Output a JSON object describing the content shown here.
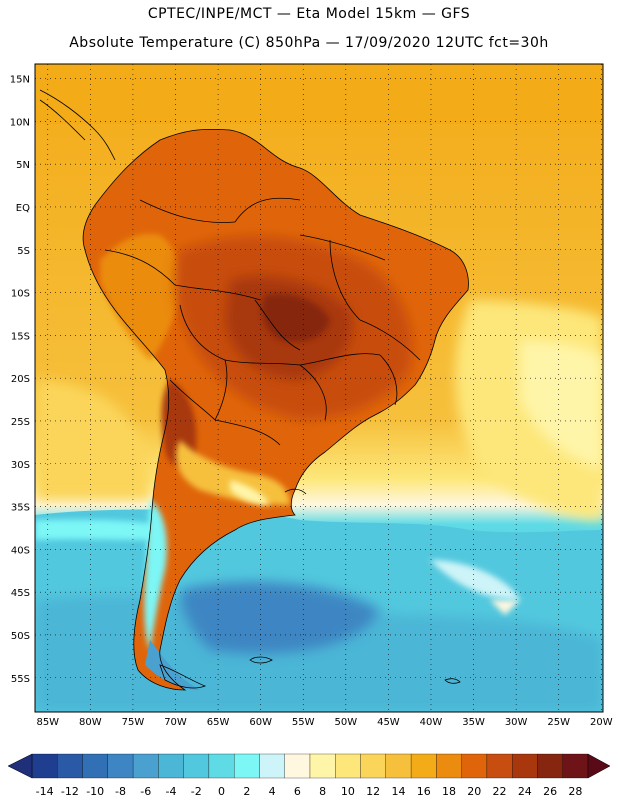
{
  "titles": {
    "line1": "CPTEC/INPE/MCT —  Eta Model 15km — GFS",
    "line2": "Absolute Temperature (C) 850hPa — 17/09/2020 12UTC fct=30h"
  },
  "latitude_labels": [
    "15N",
    "10N",
    "5N",
    "EQ",
    "5S",
    "10S",
    "15S",
    "20S",
    "25S",
    "30S",
    "35S",
    "40S",
    "45S",
    "50S",
    "55S"
  ],
  "longitude_labels": [
    "85W",
    "80W",
    "75W",
    "70W",
    "65W",
    "60W",
    "55W",
    "50W",
    "45W",
    "40W",
    "35W",
    "30W",
    "25W",
    "20W"
  ],
  "legend": {
    "labels": [
      "-14",
      "-12",
      "-10",
      "-8",
      "-6",
      "-4",
      "-2",
      "0",
      "2",
      "4",
      "6",
      "8",
      "10",
      "12",
      "14",
      "16",
      "18",
      "20",
      "22",
      "24",
      "26",
      "28"
    ],
    "colors": [
      "#1f3e8f",
      "#2a5aa6",
      "#3270b5",
      "#3d86c3",
      "#4aa0cf",
      "#4cb6d6",
      "#52c8de",
      "#5fdbe6",
      "#7df6f6",
      "#cdf4f8",
      "#fff7e0",
      "#fff5a8",
      "#fde77a",
      "#fbd55a",
      "#f6c03c",
      "#f3ab18",
      "#eb8c10",
      "#e0650a",
      "#c84d10",
      "#a8370d",
      "#862610",
      "#6e1418"
    ]
  }
}
